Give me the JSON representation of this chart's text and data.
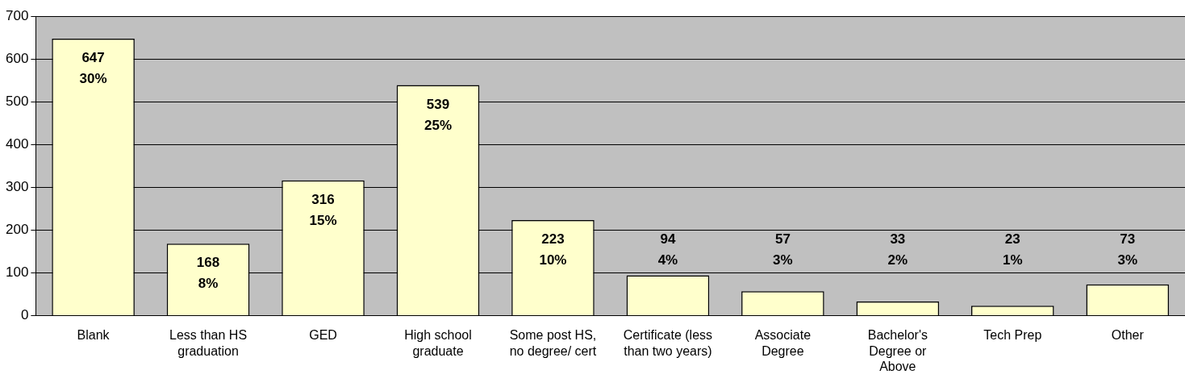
{
  "chart_data": {
    "type": "bar",
    "categories": [
      "Blank",
      "Less than HS graduation",
      "GED",
      "High school graduate",
      "Some post HS, no degree/ cert",
      "Certificate (less than two years)",
      "Associate Degree",
      "Bachelor's Degree or Above",
      "Tech Prep",
      "Other"
    ],
    "values": [
      647,
      168,
      316,
      539,
      223,
      94,
      57,
      33,
      23,
      73
    ],
    "value_labels": [
      "647\n30%",
      "168\n8%",
      "316\n15%",
      "539\n25%",
      "223\n10%",
      "94\n4%",
      "57\n3%",
      "33\n2%",
      "23\n1%",
      "73\n3%"
    ],
    "color": "#ffffcc",
    "ylim": [
      0,
      700
    ],
    "yticks": [
      0,
      100,
      200,
      300,
      400,
      500,
      600,
      700
    ],
    "grid": "y",
    "legend": false
  }
}
